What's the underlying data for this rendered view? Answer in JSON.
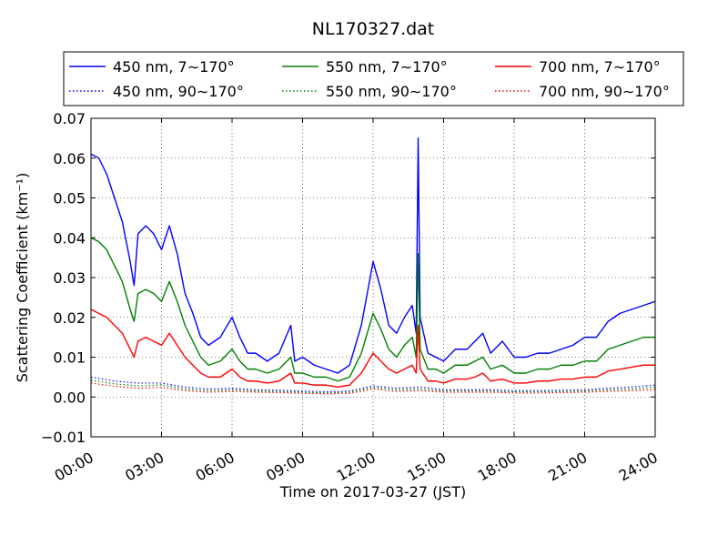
{
  "chart_data": {
    "type": "line",
    "title": "NL170327.dat",
    "xlabel": "Time on 2017-03-27 (JST)",
    "ylabel": "Scattering Coefficient (km⁻¹)",
    "xlim": [
      "00:00",
      "24:00"
    ],
    "ylim": [
      -0.01,
      0.07
    ],
    "x_ticks": [
      "00:00",
      "03:00",
      "06:00",
      "09:00",
      "12:00",
      "15:00",
      "18:00",
      "21:00",
      "24:00"
    ],
    "y_ticks": [
      "−0.01",
      "0.00",
      "0.01",
      "0.02",
      "0.03",
      "0.04",
      "0.05",
      "0.06",
      "0.07"
    ],
    "grid": true,
    "legend_position": "top",
    "series": [
      {
        "name": "450 nm, 7∼170°",
        "color": "#0000ff",
        "style": "solid",
        "x": [
          "00:00",
          "00:20",
          "00:40",
          "01:00",
          "01:20",
          "01:40",
          "01:50",
          "02:00",
          "02:20",
          "02:40",
          "03:00",
          "03:20",
          "03:40",
          "04:00",
          "04:20",
          "04:40",
          "05:00",
          "05:30",
          "06:00",
          "06:20",
          "06:40",
          "07:00",
          "07:30",
          "08:00",
          "08:30",
          "08:40",
          "09:00",
          "09:30",
          "10:00",
          "10:30",
          "11:00",
          "11:30",
          "12:00",
          "12:20",
          "12:40",
          "13:00",
          "13:20",
          "13:40",
          "13:50",
          "13:55",
          "14:00",
          "14:20",
          "14:40",
          "15:00",
          "15:30",
          "16:00",
          "16:20",
          "16:40",
          "17:00",
          "17:30",
          "18:00",
          "18:30",
          "19:00",
          "19:30",
          "20:00",
          "20:30",
          "21:00",
          "21:30",
          "22:00",
          "22:30",
          "23:00",
          "23:30",
          "24:00"
        ],
        "y": [
          0.061,
          0.06,
          0.056,
          0.05,
          0.044,
          0.034,
          0.028,
          0.041,
          0.043,
          0.041,
          0.037,
          0.043,
          0.036,
          0.026,
          0.021,
          0.015,
          0.013,
          0.015,
          0.02,
          0.015,
          0.011,
          0.011,
          0.009,
          0.011,
          0.018,
          0.009,
          0.01,
          0.008,
          0.007,
          0.006,
          0.008,
          0.018,
          0.034,
          0.027,
          0.018,
          0.016,
          0.02,
          0.023,
          0.016,
          0.065,
          0.02,
          0.011,
          0.01,
          0.009,
          0.012,
          0.012,
          0.014,
          0.016,
          0.011,
          0.014,
          0.01,
          0.01,
          0.011,
          0.011,
          0.012,
          0.013,
          0.015,
          0.015,
          0.019,
          0.021,
          0.022,
          0.023,
          0.024
        ]
      },
      {
        "name": "550 nm, 7∼170°",
        "color": "#008000",
        "style": "solid",
        "x": [
          "00:00",
          "00:20",
          "00:40",
          "01:00",
          "01:20",
          "01:40",
          "01:50",
          "02:00",
          "02:20",
          "02:40",
          "03:00",
          "03:20",
          "03:40",
          "04:00",
          "04:20",
          "04:40",
          "05:00",
          "05:30",
          "06:00",
          "06:20",
          "06:40",
          "07:00",
          "07:30",
          "08:00",
          "08:30",
          "08:40",
          "09:00",
          "09:30",
          "10:00",
          "10:30",
          "11:00",
          "11:30",
          "12:00",
          "12:20",
          "12:40",
          "13:00",
          "13:20",
          "13:40",
          "13:50",
          "13:55",
          "14:00",
          "14:20",
          "14:40",
          "15:00",
          "15:30",
          "16:00",
          "16:20",
          "16:40",
          "17:00",
          "17:30",
          "18:00",
          "18:30",
          "19:00",
          "19:30",
          "20:00",
          "20:30",
          "21:00",
          "21:30",
          "22:00",
          "22:30",
          "23:00",
          "23:30",
          "24:00"
        ],
        "y": [
          0.04,
          0.039,
          0.037,
          0.033,
          0.029,
          0.022,
          0.019,
          0.026,
          0.027,
          0.026,
          0.024,
          0.029,
          0.024,
          0.018,
          0.014,
          0.01,
          0.008,
          0.009,
          0.012,
          0.009,
          0.007,
          0.007,
          0.006,
          0.007,
          0.01,
          0.006,
          0.006,
          0.005,
          0.005,
          0.004,
          0.005,
          0.011,
          0.021,
          0.017,
          0.012,
          0.01,
          0.013,
          0.015,
          0.01,
          0.036,
          0.012,
          0.007,
          0.007,
          0.006,
          0.008,
          0.008,
          0.009,
          0.01,
          0.007,
          0.008,
          0.006,
          0.006,
          0.007,
          0.007,
          0.008,
          0.008,
          0.009,
          0.009,
          0.012,
          0.013,
          0.014,
          0.015,
          0.015
        ]
      },
      {
        "name": "700 nm, 7∼170°",
        "color": "#ff0000",
        "style": "solid",
        "x": [
          "00:00",
          "00:20",
          "00:40",
          "01:00",
          "01:20",
          "01:40",
          "01:50",
          "02:00",
          "02:20",
          "02:40",
          "03:00",
          "03:20",
          "03:40",
          "04:00",
          "04:20",
          "04:40",
          "05:00",
          "05:30",
          "06:00",
          "06:20",
          "06:40",
          "07:00",
          "07:30",
          "08:00",
          "08:30",
          "08:40",
          "09:00",
          "09:30",
          "10:00",
          "10:30",
          "11:00",
          "11:30",
          "12:00",
          "12:20",
          "12:40",
          "13:00",
          "13:20",
          "13:40",
          "13:50",
          "13:55",
          "14:00",
          "14:20",
          "14:40",
          "15:00",
          "15:30",
          "16:00",
          "16:20",
          "16:40",
          "17:00",
          "17:30",
          "18:00",
          "18:30",
          "19:00",
          "19:30",
          "20:00",
          "20:30",
          "21:00",
          "21:30",
          "22:00",
          "22:30",
          "23:00",
          "23:30",
          "24:00"
        ],
        "y": [
          0.022,
          0.021,
          0.02,
          0.018,
          0.016,
          0.012,
          0.01,
          0.014,
          0.015,
          0.014,
          0.013,
          0.016,
          0.013,
          0.01,
          0.008,
          0.006,
          0.005,
          0.005,
          0.007,
          0.005,
          0.004,
          0.004,
          0.0035,
          0.004,
          0.006,
          0.0035,
          0.0035,
          0.003,
          0.003,
          0.0025,
          0.003,
          0.006,
          0.011,
          0.009,
          0.007,
          0.006,
          0.007,
          0.008,
          0.006,
          0.018,
          0.007,
          0.004,
          0.004,
          0.0035,
          0.0045,
          0.0045,
          0.005,
          0.006,
          0.004,
          0.0045,
          0.0035,
          0.0035,
          0.004,
          0.004,
          0.0045,
          0.0045,
          0.005,
          0.005,
          0.0065,
          0.007,
          0.0075,
          0.008,
          0.008
        ]
      },
      {
        "name": "450 nm, 90∼170°",
        "color": "#0000ff",
        "style": "dotted",
        "x": [
          "00:00",
          "01:00",
          "02:00",
          "03:00",
          "04:00",
          "05:00",
          "06:00",
          "07:00",
          "08:00",
          "09:00",
          "10:00",
          "11:00",
          "12:00",
          "13:00",
          "14:00",
          "15:00",
          "16:00",
          "17:00",
          "18:00",
          "19:00",
          "20:00",
          "21:00",
          "22:00",
          "23:00",
          "24:00"
        ],
        "y": [
          0.005,
          0.004,
          0.0035,
          0.0035,
          0.0025,
          0.002,
          0.0022,
          0.0018,
          0.0017,
          0.0015,
          0.0013,
          0.0015,
          0.0028,
          0.0022,
          0.0025,
          0.0018,
          0.0018,
          0.0018,
          0.0016,
          0.0016,
          0.0017,
          0.0018,
          0.0022,
          0.0025,
          0.003
        ]
      },
      {
        "name": "550 nm, 90∼170°",
        "color": "#008000",
        "style": "dotted",
        "x": [
          "00:00",
          "01:00",
          "02:00",
          "03:00",
          "04:00",
          "05:00",
          "06:00",
          "07:00",
          "08:00",
          "09:00",
          "10:00",
          "11:00",
          "12:00",
          "13:00",
          "14:00",
          "15:00",
          "16:00",
          "17:00",
          "18:00",
          "19:00",
          "20:00",
          "21:00",
          "22:00",
          "23:00",
          "24:00"
        ],
        "y": [
          0.0042,
          0.0033,
          0.0028,
          0.003,
          0.002,
          0.0016,
          0.0018,
          0.0015,
          0.0014,
          0.0012,
          0.001,
          0.0012,
          0.0024,
          0.0018,
          0.002,
          0.0015,
          0.0015,
          0.0015,
          0.0013,
          0.0013,
          0.0014,
          0.0015,
          0.0018,
          0.002,
          0.0024
        ]
      },
      {
        "name": "700 nm, 90∼170°",
        "color": "#ff0000",
        "style": "dotted",
        "x": [
          "00:00",
          "01:00",
          "02:00",
          "03:00",
          "04:00",
          "05:00",
          "06:00",
          "07:00",
          "08:00",
          "09:00",
          "10:00",
          "11:00",
          "12:00",
          "13:00",
          "14:00",
          "15:00",
          "16:00",
          "17:00",
          "18:00",
          "19:00",
          "20:00",
          "21:00",
          "22:00",
          "23:00",
          "24:00"
        ],
        "y": [
          0.0035,
          0.0027,
          0.0022,
          0.0024,
          0.0016,
          0.0012,
          0.0014,
          0.0012,
          0.0011,
          0.0009,
          0.0008,
          0.0009,
          0.002,
          0.0014,
          0.0016,
          0.0012,
          0.0012,
          0.0012,
          0.001,
          0.001,
          0.0011,
          0.0012,
          0.0014,
          0.0016,
          0.0018
        ]
      }
    ]
  }
}
